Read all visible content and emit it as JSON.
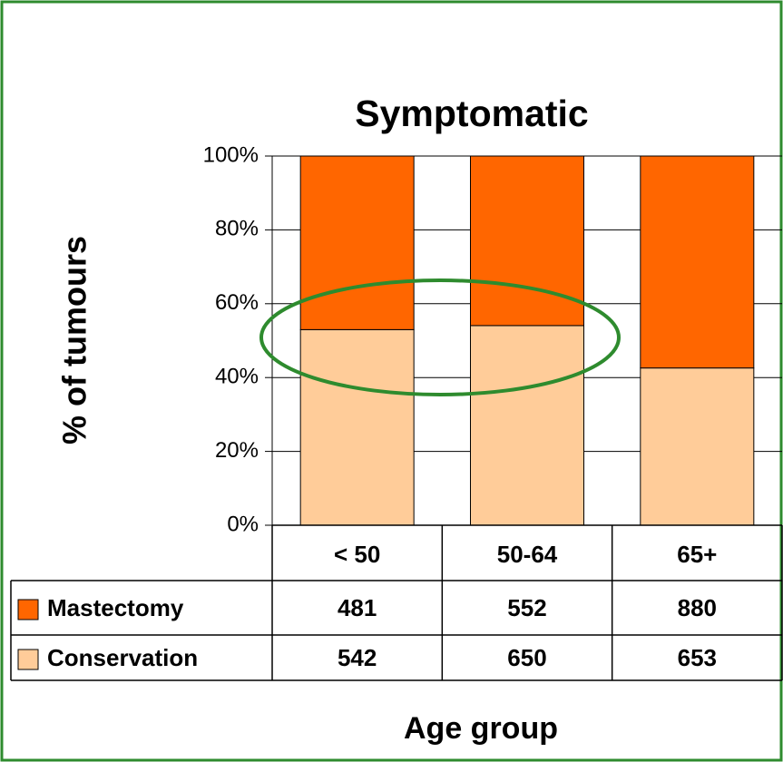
{
  "chart_data": {
    "type": "bar",
    "stacked": "percent",
    "title": "Symptomatic",
    "ylabel": "% of tumours",
    "xlabel": "Age group",
    "categories": [
      "< 50",
      "50-64",
      "65+"
    ],
    "series": [
      {
        "name": "Mastectomy",
        "color": "#ff6600",
        "values": [
          481,
          552,
          880
        ]
      },
      {
        "name": "Conservation",
        "color": "#ffcc99",
        "values": [
          542,
          650,
          653
        ]
      }
    ],
    "ylim": [
      0,
      100
    ],
    "yticks": [
      {
        "value": 0,
        "label": "0%"
      },
      {
        "value": 20,
        "label": "20%"
      },
      {
        "value": 40,
        "label": "40%"
      },
      {
        "value": 60,
        "label": "60%"
      },
      {
        "value": 80,
        "label": "80%"
      },
      {
        "value": 100,
        "label": "100%"
      }
    ],
    "grid": true
  }
}
